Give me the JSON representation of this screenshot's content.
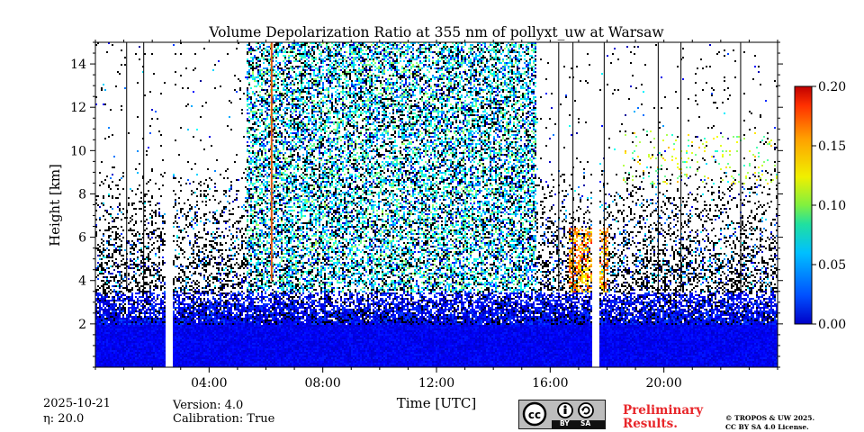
{
  "chart_data": {
    "type": "heatmap",
    "title": "Volume Depolarization Ratio at 355 nm of pollyxt_uw at Warsaw",
    "xlabel": "Time [UTC]",
    "ylabel": "Height [km]",
    "xlim": [
      0,
      24
    ],
    "ylim": [
      0,
      15
    ],
    "x_ticks": [
      "04:00",
      "08:00",
      "12:00",
      "16:00",
      "20:00"
    ],
    "y_ticks": [
      "2",
      "4",
      "6",
      "8",
      "10",
      "12",
      "14"
    ],
    "colorbar": {
      "min": 0.0,
      "max": 0.2,
      "ticks": [
        "0.00",
        "0.05",
        "0.10",
        "0.15",
        "0.20"
      ],
      "colormap": "jet"
    },
    "features": {
      "gaps_hours": [
        2.55,
        17.6
      ],
      "dense_noise_interval_hours": [
        5.3,
        15.5
      ],
      "depolarizing_layer": {
        "time_hours": [
          16.6,
          18.0
        ],
        "height_km": [
          3.5,
          6.5
        ],
        "value": 0.15
      },
      "upper_sparse_layer": {
        "time_hours": [
          18.5,
          24
        ],
        "height_km": [
          8.5,
          11
        ]
      },
      "dark_vertical_lines_hours": [
        1.1,
        1.7,
        16.3,
        16.8,
        17.9,
        19.8,
        20.6,
        22.7
      ]
    }
  },
  "footer": {
    "date": "2025-10-21",
    "eta": "η: 20.0",
    "version": "Version: 4.0",
    "calibration": "Calibration: True",
    "preliminary_1": "Preliminary",
    "preliminary_2": "Results.",
    "copyright_1": "© TROPOS & UW 2025.",
    "copyright_2": "CC BY SA 4.0 License.",
    "license_badge": {
      "by": "BY",
      "sa": "SA"
    }
  },
  "colors": {
    "low_depol": "#0a5ae8",
    "high_depol": "#f0a020",
    "noise": "#000000"
  }
}
